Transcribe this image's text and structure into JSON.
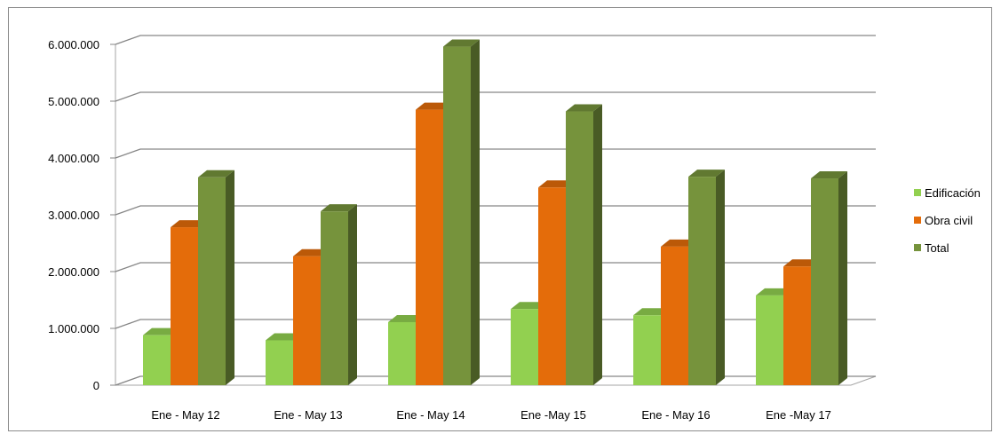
{
  "chart_data": {
    "type": "bar",
    "categories": [
      "Ene - May 12",
      "Ene - May 13",
      "Ene - May 14",
      "Ene -May 15",
      "Ene - May 16",
      "Ene -May 17"
    ],
    "series": [
      {
        "name": "Edificación",
        "color": "#92d050",
        "values": [
          880000,
          790000,
          1110000,
          1340000,
          1230000,
          1580000
        ]
      },
      {
        "name": "Obra civil",
        "color": "#e46c0a",
        "values": [
          2780000,
          2270000,
          4850000,
          3480000,
          2440000,
          2090000
        ]
      },
      {
        "name": "Total",
        "color": "#76933c",
        "values": [
          3660000,
          3060000,
          5960000,
          4820000,
          3670000,
          3640000
        ]
      }
    ],
    "yticks": [
      "0",
      "1.000.000",
      "2.000.000",
      "3.000.000",
      "4.000.000",
      "5.000.000",
      "6.000.000"
    ],
    "ylim": [
      0,
      6000000
    ],
    "grid": true,
    "legend_position": "right",
    "title": "",
    "xlabel": "",
    "ylabel": ""
  }
}
